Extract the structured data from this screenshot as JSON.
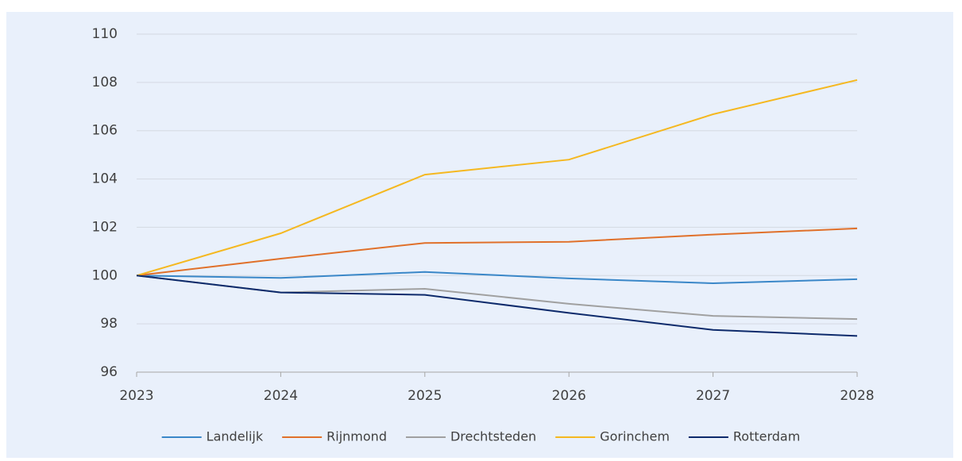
{
  "chart_data": {
    "type": "line",
    "x": [
      "2023",
      "2024",
      "2025",
      "2026",
      "2027",
      "2028"
    ],
    "series": [
      {
        "name": "Landelijk",
        "color": "#3a87c8",
        "values": [
          100,
          99.9,
          100.15,
          99.88,
          99.68,
          99.85
        ]
      },
      {
        "name": "Rijnmond",
        "color": "#e0702a",
        "values": [
          100,
          100.7,
          101.35,
          101.4,
          101.7,
          101.95
        ]
      },
      {
        "name": "Drechtsteden",
        "color": "#a0a0a0",
        "values": [
          100,
          99.3,
          99.45,
          98.83,
          98.33,
          98.2
        ]
      },
      {
        "name": "Gorinchem",
        "color": "#f5b820",
        "values": [
          100,
          101.75,
          104.18,
          104.8,
          106.68,
          108.1
        ]
      },
      {
        "name": "Rotterdam",
        "color": "#0d2a6b",
        "values": [
          100,
          99.3,
          99.2,
          98.45,
          97.75,
          97.5
        ]
      }
    ],
    "ylim": [
      96,
      110
    ],
    "yticks": [
      96,
      98,
      100,
      102,
      104,
      106,
      108,
      110
    ],
    "grid": true,
    "legend": "bottom"
  }
}
